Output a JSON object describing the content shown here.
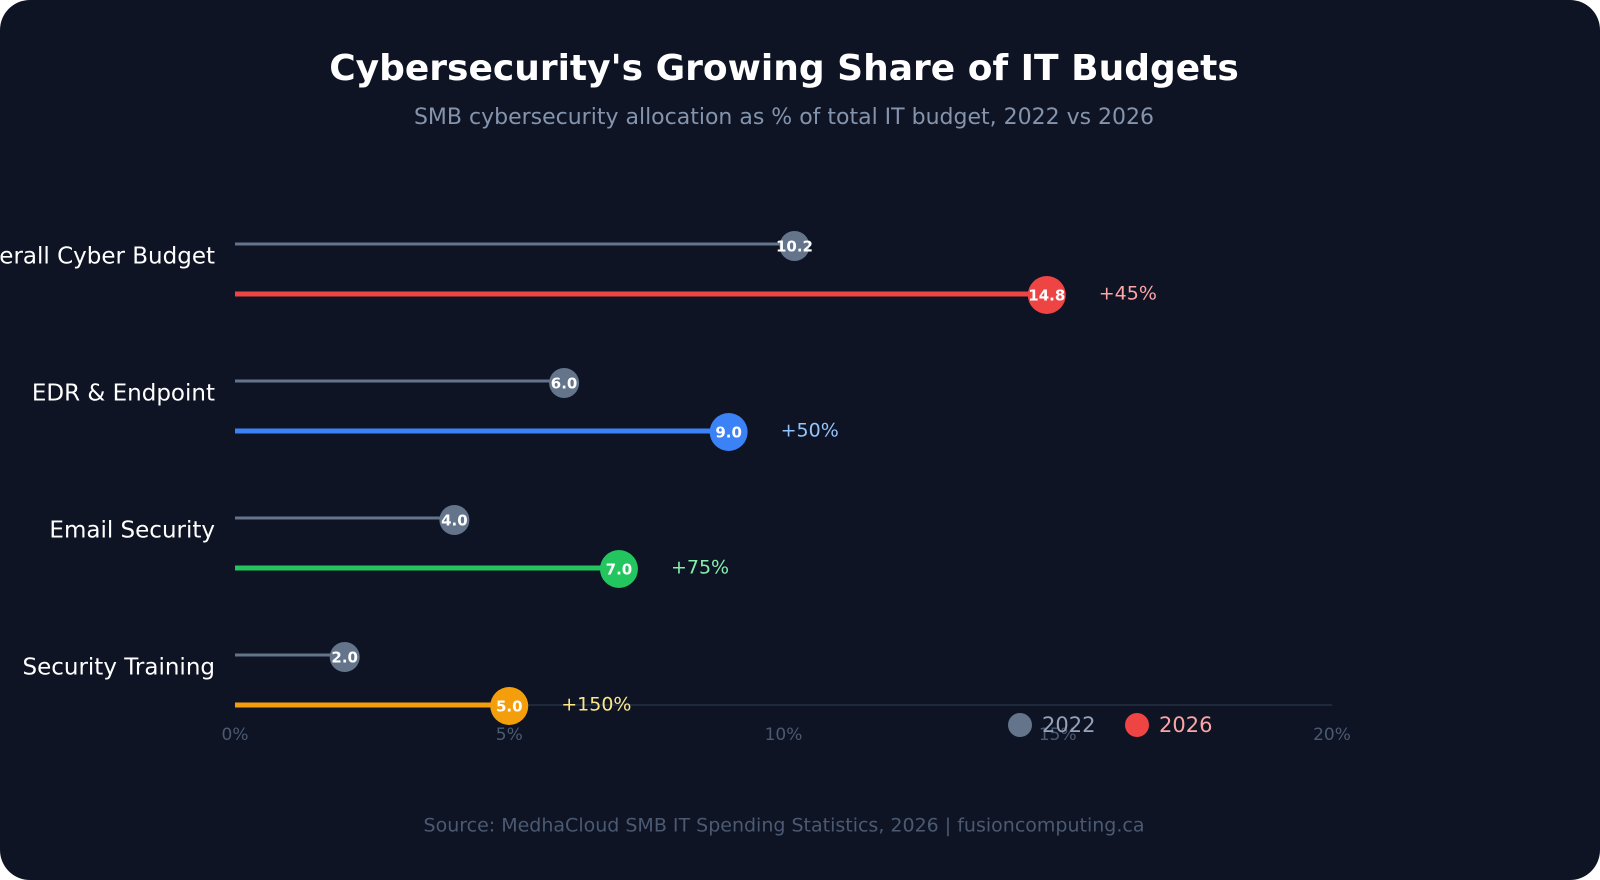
{
  "chart_data": {
    "type": "lollipop",
    "title": "Cybersecurity's Growing Share of IT Budgets",
    "subtitle": "SMB cybersecurity allocation as % of total IT budget, 2022 vs 2026",
    "source": "Source: MedhaCloud SMB IT Spending Statistics, 2026 | fusioncomputing.ca",
    "categories": [
      "Overall Cyber Budget",
      "EDR & Endpoint",
      "Email Security",
      "Security Training"
    ],
    "series": [
      {
        "name": "2022",
        "color": "#64748b",
        "values": [
          10.2,
          6,
          4,
          2
        ],
        "value_labels": [
          "10.2",
          "6.0",
          "4.0",
          "2.0"
        ]
      },
      {
        "name": "2026",
        "color": "#ef4444",
        "point_colors": [
          "#ef4444",
          "#3b82f6",
          "#22c55e",
          "#f59e0b"
        ],
        "values": [
          14.8,
          9,
          7,
          5
        ],
        "value_labels": [
          "14.8",
          "9.0",
          "7.0",
          "5.0"
        ]
      }
    ],
    "change": {
      "values": [
        45,
        50,
        75,
        150
      ],
      "value_labels": [
        "+45%",
        "+50%",
        "+75%",
        "+150%"
      ],
      "colors": [
        "#fca5a5",
        "#93c5fd",
        "#86efac",
        "#fde68a"
      ]
    },
    "xlim": [
      0,
      20
    ],
    "xticks": [
      {
        "value": 0,
        "label": "0%"
      },
      {
        "value": 5,
        "label": "5%"
      },
      {
        "value": 10,
        "label": "10%"
      },
      {
        "value": 15,
        "label": "15%"
      },
      {
        "value": 20,
        "label": "20%"
      }
    ],
    "legend": "bottom-right"
  }
}
